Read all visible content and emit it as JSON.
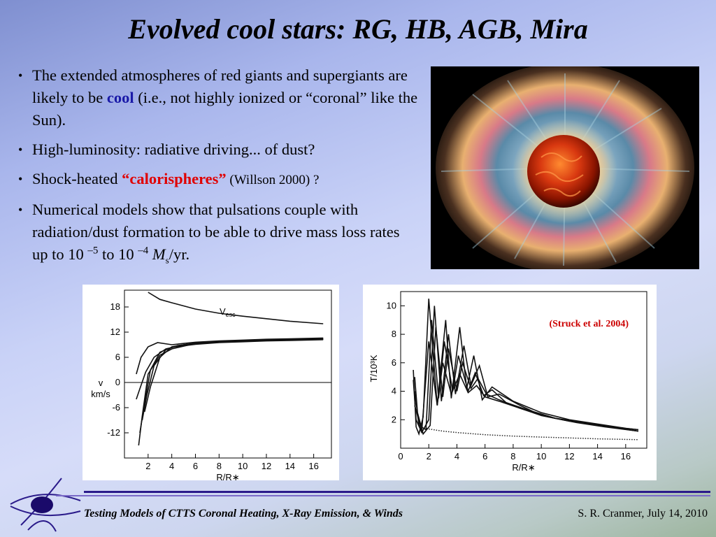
{
  "slide": {
    "title": "Evolved cool stars:  RG, HB, AGB, Mira",
    "bullets": [
      {
        "pre": "The extended atmospheres of red giants and supergiants are likely to be ",
        "emph": "cool",
        "post": " (i.e., not highly ionized or “coronal” like the Sun)."
      },
      {
        "text": "High-luminosity:  radiative driving... of dust?"
      },
      {
        "pre": "Shock-heated ",
        "emph": "“calorispheres”",
        "post": " (Willson 2000) ?"
      },
      {
        "pre": "Numerical models show that pulsations couple with radiation/dust formation to be able to drive mass loss rates up to 10 ",
        "exp1": "–5",
        "mid": " to 10 ",
        "exp2": "–4",
        "msym": "M",
        "msub": "s",
        "tail": "/yr."
      }
    ],
    "footer_left": "Testing Models of CTTS Coronal Heating, X-Ray Emission, & Winds",
    "footer_right": "S. R. Cranmer, July 14, 2010"
  },
  "colors": {
    "emph_blue": "#1a1aa8",
    "emph_red": "#e00000",
    "footer_bar": "#2a1a8a"
  },
  "chart_data": [
    {
      "type": "line",
      "xlabel": "R/R∗",
      "ylabel": "v km/s",
      "xticks": [
        2,
        4,
        6,
        8,
        10,
        12,
        14,
        16
      ],
      "yticks": [
        18,
        12,
        6,
        0,
        -6,
        -12
      ],
      "xlim": [
        0,
        17.5
      ],
      "ylim": [
        -18,
        22
      ],
      "annotation": "V",
      "annotation_sub": "esc",
      "series": [
        {
          "x": [
            2.0,
            3,
            4,
            6,
            8,
            10,
            12,
            14,
            16.8
          ],
          "y": [
            21.5,
            19.8,
            19.0,
            17.5,
            16.5,
            15.8,
            15.2,
            14.6,
            14.0
          ]
        },
        {
          "x": [
            1.2,
            1.5,
            2.0,
            3,
            4,
            6,
            8,
            10,
            12,
            14,
            16.8
          ],
          "y": [
            -15,
            -8,
            2,
            6.5,
            8.0,
            9.3,
            9.6,
            9.8,
            10.0,
            10.1,
            10.3
          ]
        },
        {
          "x": [
            1.3,
            1.7,
            2.2,
            3,
            4,
            6,
            8,
            10,
            12,
            14,
            16.8
          ],
          "y": [
            -12,
            -5,
            3,
            7.2,
            8.4,
            9.1,
            9.5,
            9.7,
            9.9,
            10.0,
            10.2
          ]
        },
        {
          "x": [
            1.5,
            1.9,
            2.5,
            3.5,
            4.5,
            6,
            8,
            10,
            12,
            14,
            16.8
          ],
          "y": [
            -9,
            -3,
            4,
            7.8,
            8.8,
            9.3,
            9.7,
            9.9,
            10.1,
            10.2,
            10.4
          ]
        },
        {
          "x": [
            1.7,
            2.2,
            3.0,
            4.0,
            5,
            6,
            8,
            10,
            12,
            14,
            16.8
          ],
          "y": [
            -7,
            -1,
            6,
            8.5,
            9.0,
            9.4,
            9.8,
            10.0,
            10.2,
            10.3,
            10.5
          ]
        },
        {
          "x": [
            1.0,
            1.3,
            1.8,
            2.5,
            3.5,
            5,
            7,
            9,
            11,
            13,
            16.8
          ],
          "y": [
            -4,
            -1.5,
            2.5,
            6.0,
            8.0,
            9.0,
            9.4,
            9.7,
            9.9,
            10.1,
            10.3
          ]
        },
        {
          "x": [
            1.0,
            1.4,
            2.0,
            2.8,
            4,
            6,
            8,
            10,
            12,
            14,
            16.8
          ],
          "y": [
            2,
            6,
            8.5,
            9.5,
            9.0,
            9.6,
            9.9,
            10.1,
            10.3,
            10.4,
            10.6
          ]
        }
      ]
    },
    {
      "type": "line",
      "xlabel": "R/R∗",
      "ylabel": "T/10³K",
      "xticks": [
        0,
        2,
        4,
        6,
        8,
        10,
        12,
        14,
        16
      ],
      "yticks": [
        2,
        4,
        6,
        8,
        10
      ],
      "xlim": [
        0,
        17.5
      ],
      "ylim": [
        0,
        11
      ],
      "annotation": "(Struck et al. 2004)",
      "series": [
        {
          "x": [
            0.9,
            1.0,
            1.1,
            1.3,
            1.6,
            2.0,
            2.6,
            3.2,
            3.6,
            4.2,
            4.7,
            5.2,
            5.8,
            6.5,
            8,
            10,
            12,
            14,
            16,
            16.9
          ],
          "y": [
            5.5,
            3.5,
            1.5,
            1.0,
            2.2,
            10.5,
            3.0,
            9.0,
            3.5,
            8.5,
            4.2,
            6.5,
            3.4,
            4.3,
            3.3,
            2.5,
            2.0,
            1.7,
            1.4,
            1.3
          ]
        },
        {
          "x": [
            0.9,
            1.1,
            1.5,
            2.0,
            2.4,
            2.9,
            3.4,
            3.9,
            4.5,
            5.0,
            5.6,
            6.2,
            7,
            8.5,
            10,
            12,
            14,
            16.9
          ],
          "y": [
            4.8,
            2.0,
            1.1,
            2.0,
            10.0,
            3.3,
            8.0,
            3.8,
            7.2,
            4.4,
            5.8,
            3.6,
            3.8,
            3.0,
            2.3,
            1.9,
            1.6,
            1.2
          ]
        },
        {
          "x": [
            1.0,
            1.3,
            1.8,
            2.2,
            2.7,
            3.1,
            3.7,
            4.1,
            4.8,
            5.3,
            5.9,
            6.5,
            7.5,
            9,
            11,
            13,
            15,
            16.9
          ],
          "y": [
            4.0,
            1.6,
            1.3,
            9.0,
            3.5,
            7.5,
            4.0,
            6.5,
            4.0,
            5.3,
            3.7,
            4.1,
            3.2,
            2.7,
            2.1,
            1.8,
            1.5,
            1.3
          ]
        },
        {
          "x": [
            1.0,
            1.2,
            1.6,
            2.1,
            2.5,
            3.0,
            3.4,
            4.0,
            4.4,
            5.0,
            5.5,
            6.1,
            7,
            8.5,
            10.5,
            12.5,
            14.5,
            16.9
          ],
          "y": [
            5.0,
            2.5,
            1.0,
            1.6,
            8.5,
            3.6,
            7.0,
            4.0,
            6.0,
            4.2,
            4.9,
            3.8,
            3.4,
            2.8,
            2.2,
            1.8,
            1.5,
            1.2
          ]
        },
        {
          "x": [
            1.0,
            1.5,
            2.0,
            2.6,
            3.0,
            3.6,
            4.2,
            4.8,
            5.4,
            6.0,
            7,
            8.5,
            10,
            12,
            14,
            16.9
          ],
          "y": [
            3.0,
            1.2,
            7.5,
            3.0,
            6.0,
            3.8,
            5.2,
            3.9,
            4.4,
            3.6,
            3.3,
            2.8,
            2.3,
            1.9,
            1.6,
            1.2
          ]
        }
      ],
      "dotted_series": {
        "x": [
          1.5,
          2,
          3,
          4,
          6,
          8,
          10,
          12,
          14,
          16.9
        ],
        "y": [
          1.5,
          1.35,
          1.2,
          1.1,
          0.95,
          0.85,
          0.78,
          0.72,
          0.66,
          0.6
        ]
      }
    }
  ]
}
